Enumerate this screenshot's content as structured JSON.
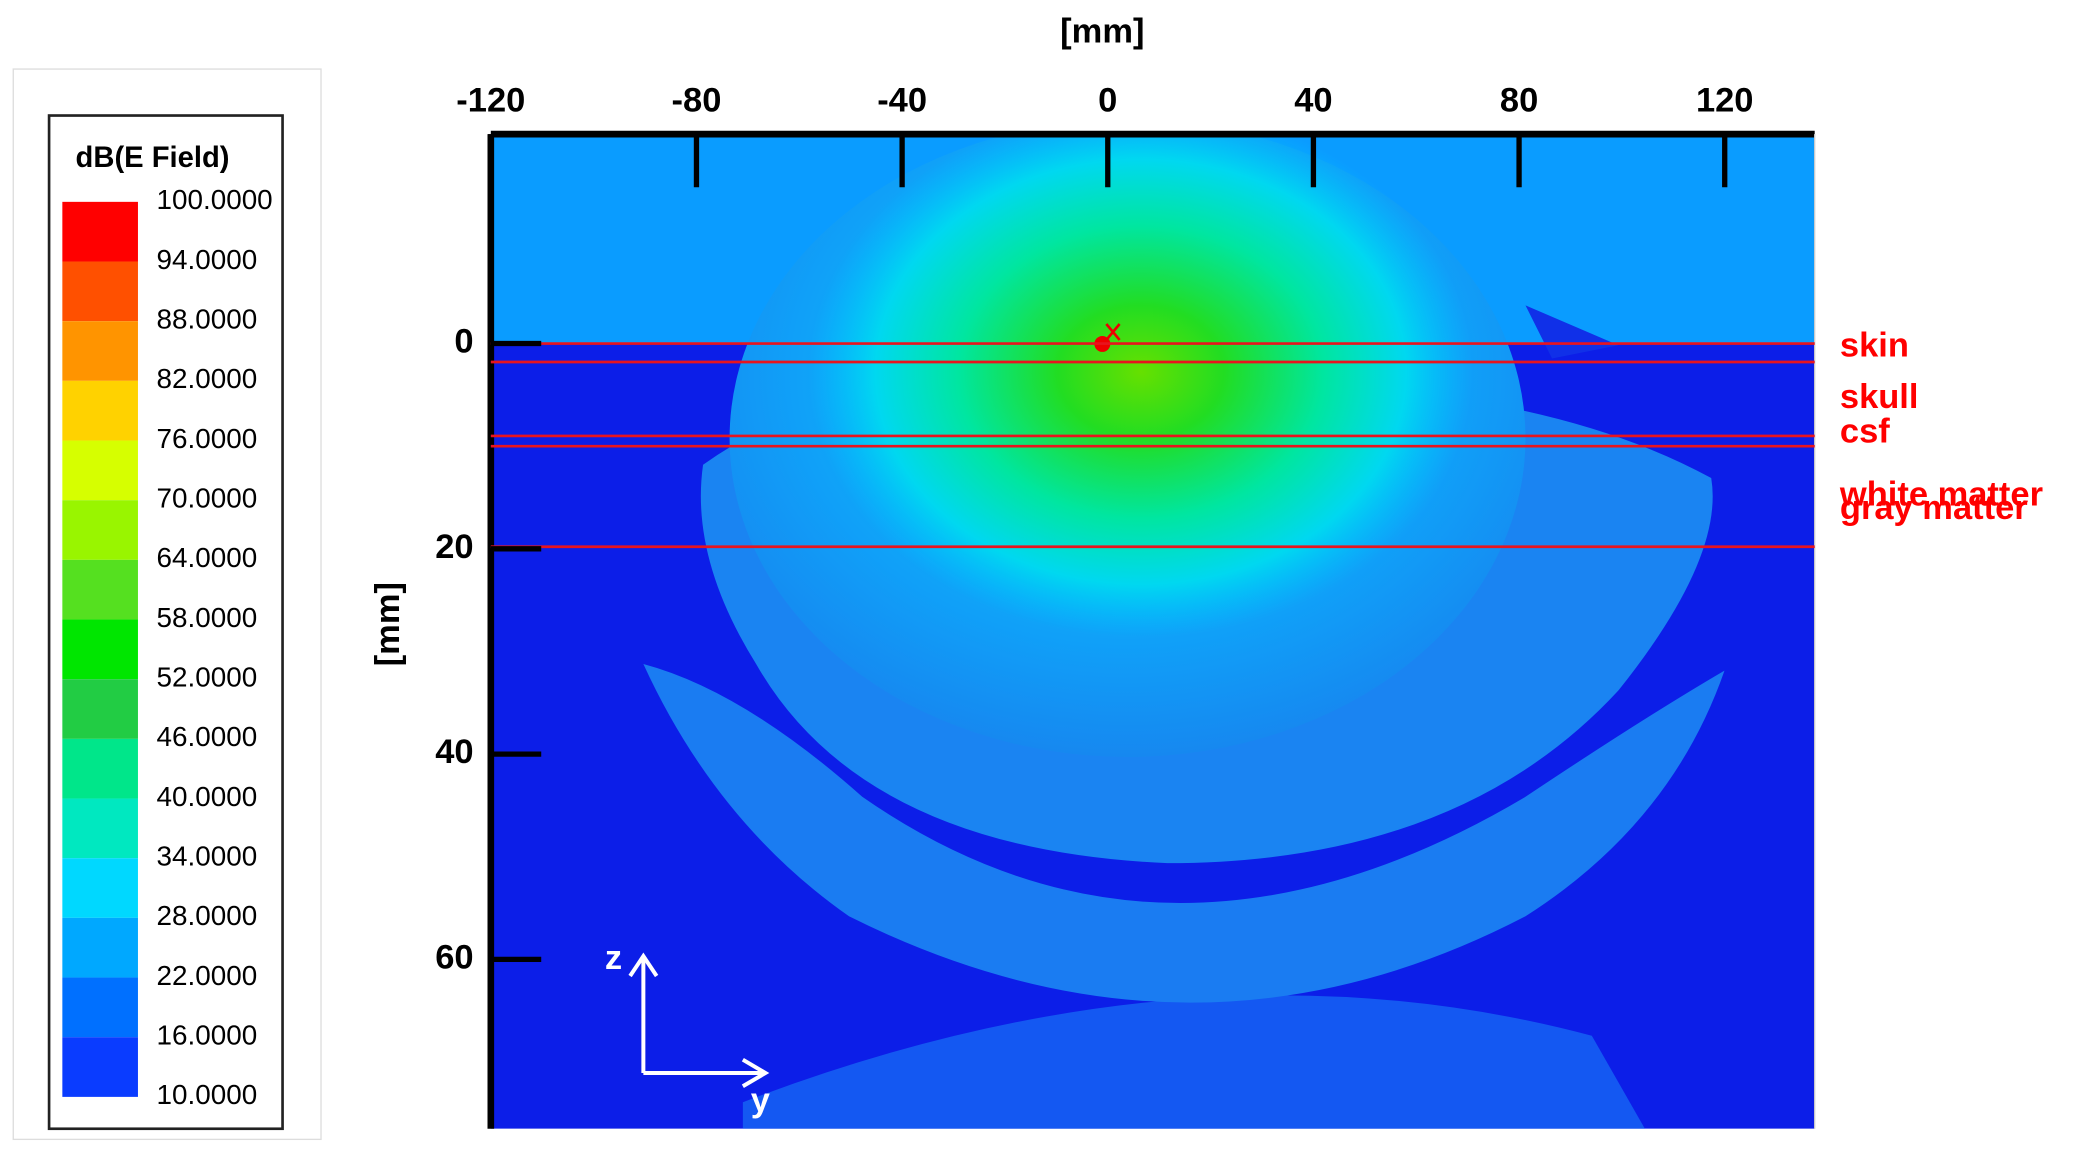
{
  "chart_data": {
    "type": "field-map",
    "x_label": "[mm]",
    "y_label": "[mm]",
    "xlim": [
      -120,
      137.5
    ],
    "ylim": [
      -20.4,
      76.5
    ],
    "xticks": [
      -120,
      -80,
      -40,
      0,
      40,
      80,
      120
    ],
    "yticks": [
      0,
      20,
      40,
      60
    ],
    "colorbar": {
      "title": "dB(E Field)",
      "ticks": [
        {
          "value": 100,
          "label": "100.0000"
        },
        {
          "value": 94,
          "label": "94.0000"
        },
        {
          "value": 88,
          "label": "88.0000"
        },
        {
          "value": 82,
          "label": "82.0000"
        },
        {
          "value": 76,
          "label": "76.0000"
        },
        {
          "value": 70,
          "label": "70.0000"
        },
        {
          "value": 64,
          "label": "64.0000"
        },
        {
          "value": 58,
          "label": "58.0000"
        },
        {
          "value": 52,
          "label": "52.0000"
        },
        {
          "value": 46,
          "label": "46.0000"
        },
        {
          "value": 40,
          "label": "40.0000"
        },
        {
          "value": 34,
          "label": "34.0000"
        },
        {
          "value": 28,
          "label": "28.0000"
        },
        {
          "value": 22,
          "label": "22.0000"
        },
        {
          "value": 16,
          "label": "16.0000"
        },
        {
          "value": 10,
          "label": "10.0000"
        }
      ],
      "colors": [
        "#ff0000",
        "#ff5000",
        "#ff9400",
        "#ffd200",
        "#d6ff00",
        "#99f500",
        "#55e020",
        "#00e600",
        "#22cc44",
        "#00e68a",
        "#00e8c0",
        "#00d8ff",
        "#00a8ff",
        "#0070ff",
        "#0a3cff"
      ]
    },
    "layers": [
      "skin",
      "skull",
      "csf",
      "white matter",
      "gray matter"
    ],
    "boundaries": [
      0,
      1.8,
      9,
      10,
      19.8
    ],
    "boundary_color": "#e8141e",
    "orientation": {
      "vertical": "z",
      "horizontal": "y"
    }
  }
}
